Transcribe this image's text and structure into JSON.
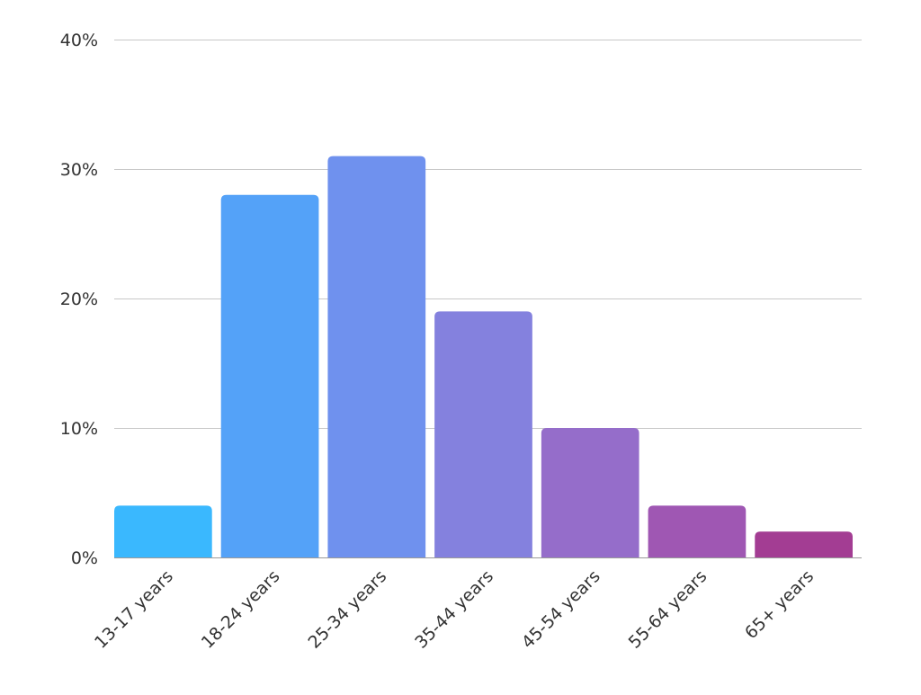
{
  "chart_data": {
    "type": "bar",
    "title": "",
    "xlabel": "",
    "ylabel": "",
    "categories": [
      "13-17 years",
      "18-24 years",
      "25-34 years",
      "35-44 years",
      "45-54 years",
      "55-64 years",
      "65+ years"
    ],
    "values": [
      4,
      28,
      31,
      19,
      10,
      4,
      2
    ],
    "ylim": [
      0,
      40
    ],
    "yticks": [
      0,
      10,
      20,
      30,
      40
    ],
    "ytick_labels": [
      "0%",
      "10%",
      "20%",
      "30%",
      "40%"
    ],
    "grid": true,
    "legend": "none",
    "colors": [
      "#3ab8fe",
      "#54a2f8",
      "#6f91ee",
      "#8481de",
      "#956dca",
      "#9f57b3",
      "#a33d93"
    ]
  }
}
